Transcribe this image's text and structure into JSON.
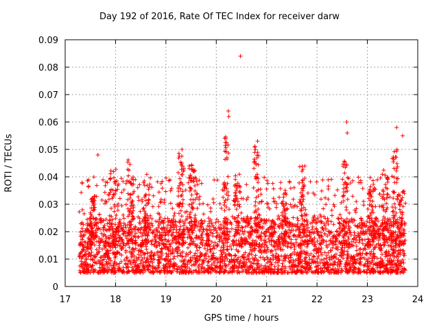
{
  "chart_data": {
    "type": "scatter",
    "title": "Day 192 of 2016, Rate Of TEC Index for receiver darw",
    "xlabel": "GPS time / hours",
    "ylabel": "ROTI / TECUs",
    "xlim": [
      17,
      24
    ],
    "ylim": [
      0,
      0.09
    ],
    "xticks": [
      "17",
      "18",
      "19",
      "20",
      "21",
      "22",
      "23",
      "24"
    ],
    "yticks": [
      "0",
      "0.01",
      "0.02",
      "0.03",
      "0.04",
      "0.05",
      "0.06",
      "0.07",
      "0.08",
      "0.09"
    ],
    "grid": true,
    "marker": "+",
    "color": "#ff0000",
    "notable_points": [
      {
        "x": 17.65,
        "y": 0.048
      },
      {
        "x": 19.32,
        "y": 0.05
      },
      {
        "x": 20.24,
        "y": 0.064
      },
      {
        "x": 20.25,
        "y": 0.062
      },
      {
        "x": 20.48,
        "y": 0.084
      },
      {
        "x": 20.82,
        "y": 0.053
      },
      {
        "x": 22.59,
        "y": 0.06
      },
      {
        "x": 22.6,
        "y": 0.056
      },
      {
        "x": 23.58,
        "y": 0.058
      },
      {
        "x": 23.7,
        "y": 0.055
      }
    ],
    "dense_band": {
      "x_range": [
        17.28,
        23.75
      ],
      "typical_y_range": [
        0.004,
        0.035
      ]
    }
  }
}
